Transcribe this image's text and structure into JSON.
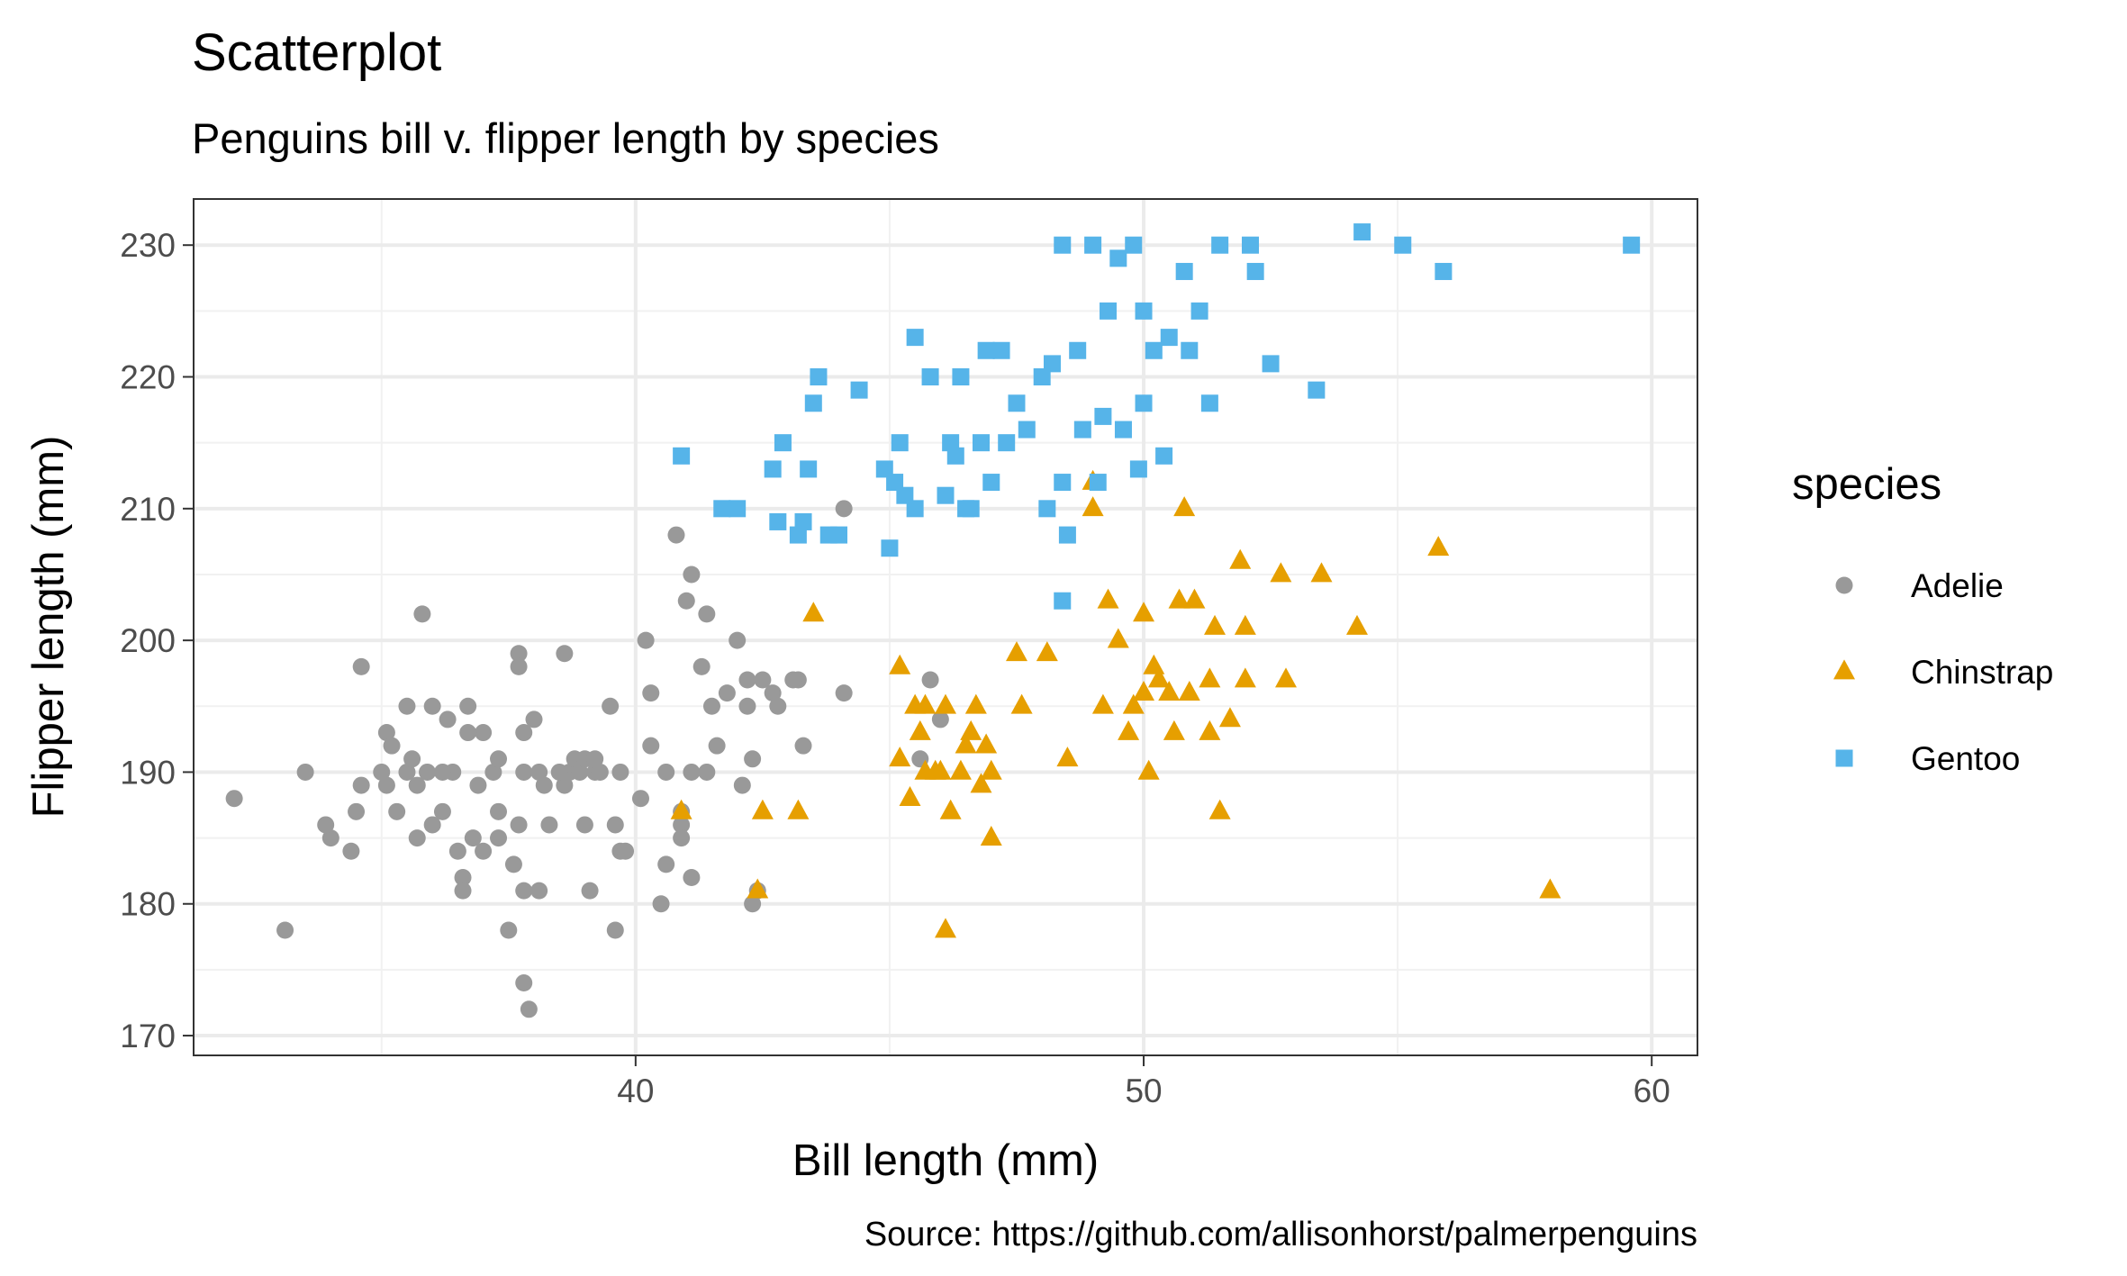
{
  "chart_data": {
    "type": "scatter",
    "title": "Scatterplot",
    "subtitle": "Penguins bill v. flipper length by species",
    "xlabel": "Bill length (mm)",
    "ylabel": "Flipper length (mm)",
    "caption": "Source: https://github.com/allisonhorst/palmerpenguins",
    "xlim": [
      31.3,
      60.9
    ],
    "ylim": [
      168.5,
      233.5
    ],
    "x_ticks": [
      40,
      50,
      60
    ],
    "y_ticks": [
      170,
      180,
      190,
      200,
      210,
      220,
      230
    ],
    "grid": true,
    "legend": {
      "title": "species",
      "position": "right",
      "entries": [
        "Adelie",
        "Chinstrap",
        "Gentoo"
      ]
    },
    "series": [
      {
        "name": "Adelie",
        "color": "#999999",
        "shape": "circle",
        "points": [
          [
            32.1,
            188
          ],
          [
            33.1,
            178
          ],
          [
            33.5,
            190
          ],
          [
            34.0,
            185
          ],
          [
            34.4,
            184
          ],
          [
            34.5,
            187
          ],
          [
            34.6,
            198
          ],
          [
            34.6,
            189
          ],
          [
            35.0,
            190
          ],
          [
            35.1,
            193
          ],
          [
            35.2,
            192
          ],
          [
            35.3,
            187
          ],
          [
            35.5,
            190
          ],
          [
            35.5,
            195
          ],
          [
            35.6,
            191
          ],
          [
            35.7,
            185
          ],
          [
            35.9,
            190
          ],
          [
            36.0,
            195
          ],
          [
            36.0,
            186
          ],
          [
            36.2,
            187
          ],
          [
            36.4,
            190
          ],
          [
            36.5,
            184
          ],
          [
            36.6,
            182
          ],
          [
            36.6,
            181
          ],
          [
            36.7,
            195
          ],
          [
            36.8,
            185
          ],
          [
            37.0,
            184
          ],
          [
            37.0,
            193
          ],
          [
            37.2,
            190
          ],
          [
            37.3,
            187
          ],
          [
            37.3,
            191
          ],
          [
            37.5,
            178
          ],
          [
            37.6,
            183
          ],
          [
            37.7,
            199
          ],
          [
            37.8,
            181
          ],
          [
            37.8,
            190
          ],
          [
            37.9,
            172
          ],
          [
            38.0,
            194
          ],
          [
            38.1,
            190
          ],
          [
            38.2,
            189
          ],
          [
            38.6,
            189
          ],
          [
            38.7,
            190
          ],
          [
            38.8,
            191
          ],
          [
            39.0,
            186
          ],
          [
            39.1,
            181
          ],
          [
            39.2,
            190
          ],
          [
            39.5,
            195
          ],
          [
            39.6,
            178
          ],
          [
            39.7,
            190
          ],
          [
            40.1,
            188
          ],
          [
            40.2,
            200
          ],
          [
            40.3,
            196
          ],
          [
            40.6,
            183
          ],
          [
            40.8,
            208
          ],
          [
            40.9,
            187
          ],
          [
            41.0,
            203
          ],
          [
            41.1,
            205
          ],
          [
            41.3,
            198
          ],
          [
            41.4,
            202
          ],
          [
            41.6,
            192
          ],
          [
            42.0,
            200
          ],
          [
            42.2,
            197
          ],
          [
            42.3,
            191
          ],
          [
            42.5,
            197
          ],
          [
            42.8,
            195
          ],
          [
            43.2,
            197
          ],
          [
            43.3,
            192
          ],
          [
            44.1,
            196
          ],
          [
            44.1,
            210
          ],
          [
            45.6,
            191
          ],
          [
            45.8,
            197
          ],
          [
            46.0,
            194
          ],
          [
            33.9,
            186
          ],
          [
            35.1,
            189
          ],
          [
            35.7,
            189
          ],
          [
            35.8,
            202
          ],
          [
            36.2,
            190
          ],
          [
            36.3,
            194
          ],
          [
            36.7,
            193
          ],
          [
            36.9,
            189
          ],
          [
            37.3,
            185
          ],
          [
            37.7,
            186
          ],
          [
            37.7,
            198
          ],
          [
            37.8,
            193
          ],
          [
            37.8,
            174
          ],
          [
            38.1,
            181
          ],
          [
            38.3,
            186
          ],
          [
            38.5,
            190
          ],
          [
            38.6,
            199
          ],
          [
            38.9,
            190
          ],
          [
            39.0,
            191
          ],
          [
            39.2,
            191
          ],
          [
            39.3,
            190
          ],
          [
            39.6,
            186
          ],
          [
            39.7,
            184
          ],
          [
            39.8,
            184
          ],
          [
            40.3,
            192
          ],
          [
            40.5,
            180
          ],
          [
            40.6,
            190
          ],
          [
            40.9,
            186
          ],
          [
            40.9,
            185
          ],
          [
            41.1,
            190
          ],
          [
            41.1,
            182
          ],
          [
            41.4,
            190
          ],
          [
            41.5,
            195
          ],
          [
            41.8,
            196
          ],
          [
            42.1,
            189
          ],
          [
            42.2,
            195
          ],
          [
            42.4,
            181
          ],
          [
            42.7,
            196
          ],
          [
            43.1,
            197
          ],
          [
            42.3,
            180
          ]
        ]
      },
      {
        "name": "Chinstrap",
        "color": "#E69F00",
        "shape": "triangle",
        "points": [
          [
            40.9,
            187
          ],
          [
            42.4,
            181
          ],
          [
            42.5,
            187
          ],
          [
            43.2,
            187
          ],
          [
            43.5,
            202
          ],
          [
            45.2,
            198
          ],
          [
            45.2,
            191
          ],
          [
            45.4,
            188
          ],
          [
            45.5,
            195
          ],
          [
            45.6,
            193
          ],
          [
            45.7,
            195
          ],
          [
            45.7,
            190
          ],
          [
            45.9,
            190
          ],
          [
            46.1,
            195
          ],
          [
            46.1,
            178
          ],
          [
            46.2,
            187
          ],
          [
            46.4,
            190
          ],
          [
            46.5,
            192
          ],
          [
            46.6,
            193
          ],
          [
            46.7,
            195
          ],
          [
            46.8,
            189
          ],
          [
            46.9,
            192
          ],
          [
            47.0,
            185
          ],
          [
            47.5,
            199
          ],
          [
            47.6,
            195
          ],
          [
            48.1,
            199
          ],
          [
            48.5,
            191
          ],
          [
            49.0,
            210
          ],
          [
            49.0,
            212
          ],
          [
            49.2,
            195
          ],
          [
            49.3,
            203
          ],
          [
            49.5,
            200
          ],
          [
            49.7,
            193
          ],
          [
            49.8,
            195
          ],
          [
            50.0,
            196
          ],
          [
            50.1,
            190
          ],
          [
            50.2,
            198
          ],
          [
            50.3,
            197
          ],
          [
            50.5,
            196
          ],
          [
            50.6,
            193
          ],
          [
            50.7,
            203
          ],
          [
            50.8,
            210
          ],
          [
            51.0,
            203
          ],
          [
            51.3,
            193
          ],
          [
            51.4,
            201
          ],
          [
            51.5,
            187
          ],
          [
            51.7,
            194
          ],
          [
            51.9,
            206
          ],
          [
            52.0,
            201
          ],
          [
            52.7,
            205
          ],
          [
            53.5,
            205
          ],
          [
            54.2,
            201
          ],
          [
            55.8,
            207
          ],
          [
            58.0,
            181
          ],
          [
            50.0,
            202
          ],
          [
            50.9,
            196
          ],
          [
            51.3,
            197
          ],
          [
            52.0,
            197
          ],
          [
            52.8,
            197
          ],
          [
            46.0,
            190
          ],
          [
            47.0,
            190
          ]
        ]
      },
      {
        "name": "Gentoo",
        "color": "#56B4E9",
        "shape": "square",
        "points": [
          [
            40.9,
            214
          ],
          [
            41.7,
            210
          ],
          [
            42.0,
            210
          ],
          [
            42.7,
            213
          ],
          [
            42.8,
            209
          ],
          [
            42.9,
            215
          ],
          [
            43.2,
            208
          ],
          [
            43.3,
            209
          ],
          [
            43.4,
            213
          ],
          [
            43.5,
            218
          ],
          [
            43.6,
            220
          ],
          [
            43.8,
            208
          ],
          [
            44.0,
            208
          ],
          [
            44.4,
            219
          ],
          [
            44.9,
            213
          ],
          [
            45.1,
            212
          ],
          [
            45.2,
            215
          ],
          [
            45.3,
            211
          ],
          [
            45.5,
            210
          ],
          [
            45.5,
            223
          ],
          [
            45.8,
            220
          ],
          [
            46.1,
            211
          ],
          [
            46.2,
            215
          ],
          [
            46.4,
            220
          ],
          [
            46.5,
            210
          ],
          [
            46.6,
            210
          ],
          [
            46.8,
            215
          ],
          [
            46.9,
            222
          ],
          [
            47.2,
            222
          ],
          [
            47.3,
            215
          ],
          [
            47.5,
            218
          ],
          [
            47.7,
            216
          ],
          [
            48.1,
            210
          ],
          [
            48.2,
            221
          ],
          [
            48.4,
            212
          ],
          [
            48.5,
            208
          ],
          [
            48.7,
            222
          ],
          [
            48.8,
            216
          ],
          [
            49.1,
            212
          ],
          [
            49.2,
            217
          ],
          [
            49.3,
            225
          ],
          [
            49.5,
            229
          ],
          [
            49.6,
            216
          ],
          [
            49.8,
            230
          ],
          [
            49.9,
            213
          ],
          [
            50.0,
            218
          ],
          [
            50.2,
            222
          ],
          [
            50.4,
            214
          ],
          [
            50.5,
            223
          ],
          [
            50.8,
            228
          ],
          [
            50.9,
            222
          ],
          [
            51.1,
            225
          ],
          [
            51.3,
            218
          ],
          [
            51.5,
            230
          ],
          [
            52.1,
            230
          ],
          [
            52.2,
            228
          ],
          [
            52.5,
            221
          ],
          [
            53.4,
            219
          ],
          [
            54.3,
            231
          ],
          [
            55.1,
            230
          ],
          [
            55.9,
            228
          ],
          [
            59.6,
            230
          ],
          [
            48.4,
            230
          ],
          [
            48.4,
            203
          ],
          [
            49.0,
            230
          ],
          [
            50.0,
            225
          ],
          [
            45.0,
            207
          ],
          [
            47.0,
            212
          ],
          [
            46.3,
            214
          ],
          [
            48.0,
            220
          ]
        ]
      }
    ]
  }
}
